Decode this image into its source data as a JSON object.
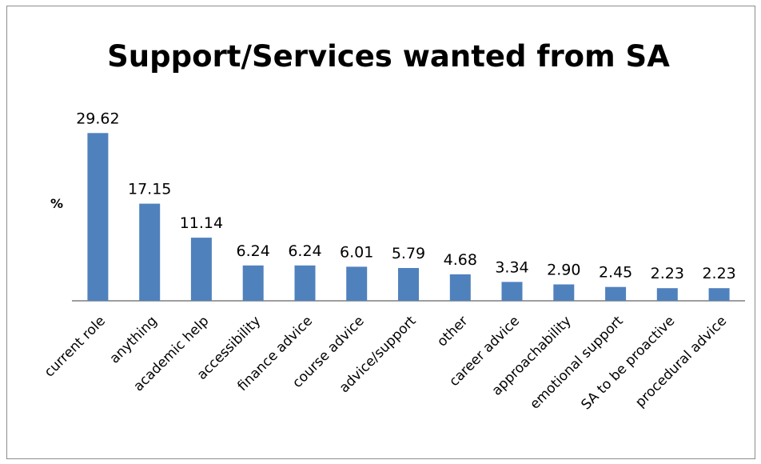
{
  "chart_data": {
    "type": "bar",
    "title": "Support/Services wanted from SA",
    "xlabel": "",
    "ylabel": "%",
    "categories": [
      "current role",
      "anything",
      "academic help",
      "accessibility",
      "finance advice",
      "course advice",
      "advice/support",
      "other",
      "career advice",
      "approachability",
      "emotional support",
      "SA to be proactive",
      "procedural advice"
    ],
    "values": [
      29.62,
      17.15,
      11.14,
      6.24,
      6.24,
      6.01,
      5.79,
      4.68,
      3.34,
      2.9,
      2.45,
      2.23,
      2.23
    ],
    "value_labels": [
      "29.62",
      "17.15",
      "11.14",
      "6.24",
      "6.24",
      "6.01",
      "5.79",
      "4.68",
      "3.34",
      "2.90",
      "2.45",
      "2.23",
      "2.23"
    ],
    "ylim": [
      0,
      30
    ],
    "grid": false,
    "legend": false,
    "bar_color": "#4f81bd",
    "axis_color": "#7f7f7f"
  }
}
